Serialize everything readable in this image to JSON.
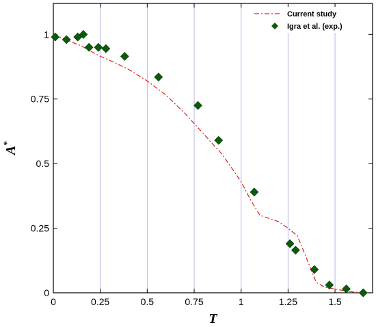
{
  "chart_data": {
    "type": "line+scatter",
    "xlabel": "T",
    "ylabel": "A",
    "ylabel_superscript": "*",
    "xlim": [
      0,
      1.7
    ],
    "ylim": [
      0,
      1.12
    ],
    "xticks": [
      0,
      0.25,
      0.5,
      0.75,
      1,
      1.25,
      1.5
    ],
    "xtick_labels": [
      "0",
      "0.25",
      "0.5",
      "0.75",
      "1",
      "1.25",
      "1.5"
    ],
    "yticks": [
      0,
      0.25,
      0.5,
      0.75,
      1
    ],
    "ytick_labels": [
      "0",
      "0.25",
      "0.5",
      "0.75",
      "1"
    ],
    "grid": "vertical",
    "legend_position": "top-right",
    "series": [
      {
        "name": "Current study",
        "style": "dash-dot line",
        "color": "#e02020",
        "x": [
          0,
          0.05,
          0.1,
          0.15,
          0.2,
          0.25,
          0.3,
          0.4,
          0.5,
          0.6,
          0.7,
          0.8,
          0.9,
          1.0,
          1.05,
          1.1,
          1.2,
          1.25,
          1.3,
          1.35,
          1.4,
          1.45,
          1.5,
          1.55,
          1.6,
          1.65
        ],
        "y": [
          1.0,
          0.985,
          0.97,
          0.955,
          0.935,
          0.915,
          0.9,
          0.865,
          0.82,
          0.765,
          0.695,
          0.615,
          0.535,
          0.43,
          0.36,
          0.3,
          0.275,
          0.25,
          0.22,
          0.13,
          0.04,
          0.02,
          0.015,
          0.008,
          0.003,
          0.0
        ]
      },
      {
        "name": "Igra et al. (exp.)",
        "style": "diamond markers",
        "color": "#0d5a0d",
        "x": [
          0.01,
          0.07,
          0.13,
          0.16,
          0.19,
          0.24,
          0.28,
          0.38,
          0.56,
          0.77,
          0.88,
          1.07,
          1.26,
          1.29,
          1.39,
          1.47,
          1.56,
          1.65
        ],
        "y": [
          0.99,
          0.98,
          0.99,
          1.0,
          0.95,
          0.95,
          0.945,
          0.915,
          0.835,
          0.725,
          0.59,
          0.39,
          0.19,
          0.165,
          0.09,
          0.03,
          0.015,
          0.0
        ]
      }
    ]
  }
}
